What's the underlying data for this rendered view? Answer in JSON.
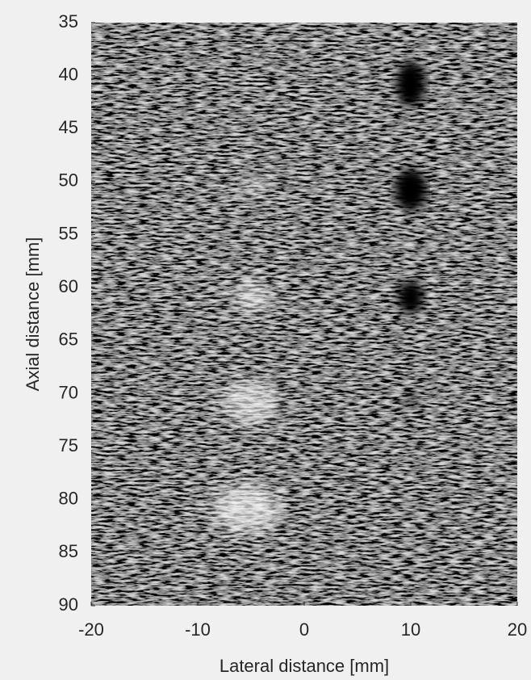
{
  "chart_data": {
    "type": "image",
    "xlabel": "Lateral distance [mm]",
    "ylabel": "Axial distance [mm]",
    "xlim": [
      -20,
      20
    ],
    "ylim": [
      35,
      90
    ],
    "ydir": "reverse",
    "xticks": [
      -20,
      -10,
      0,
      10,
      20
    ],
    "yticks": [
      35,
      40,
      45,
      50,
      55,
      60,
      65,
      70,
      75,
      80,
      85,
      90
    ],
    "colormap": "gray"
  }
}
